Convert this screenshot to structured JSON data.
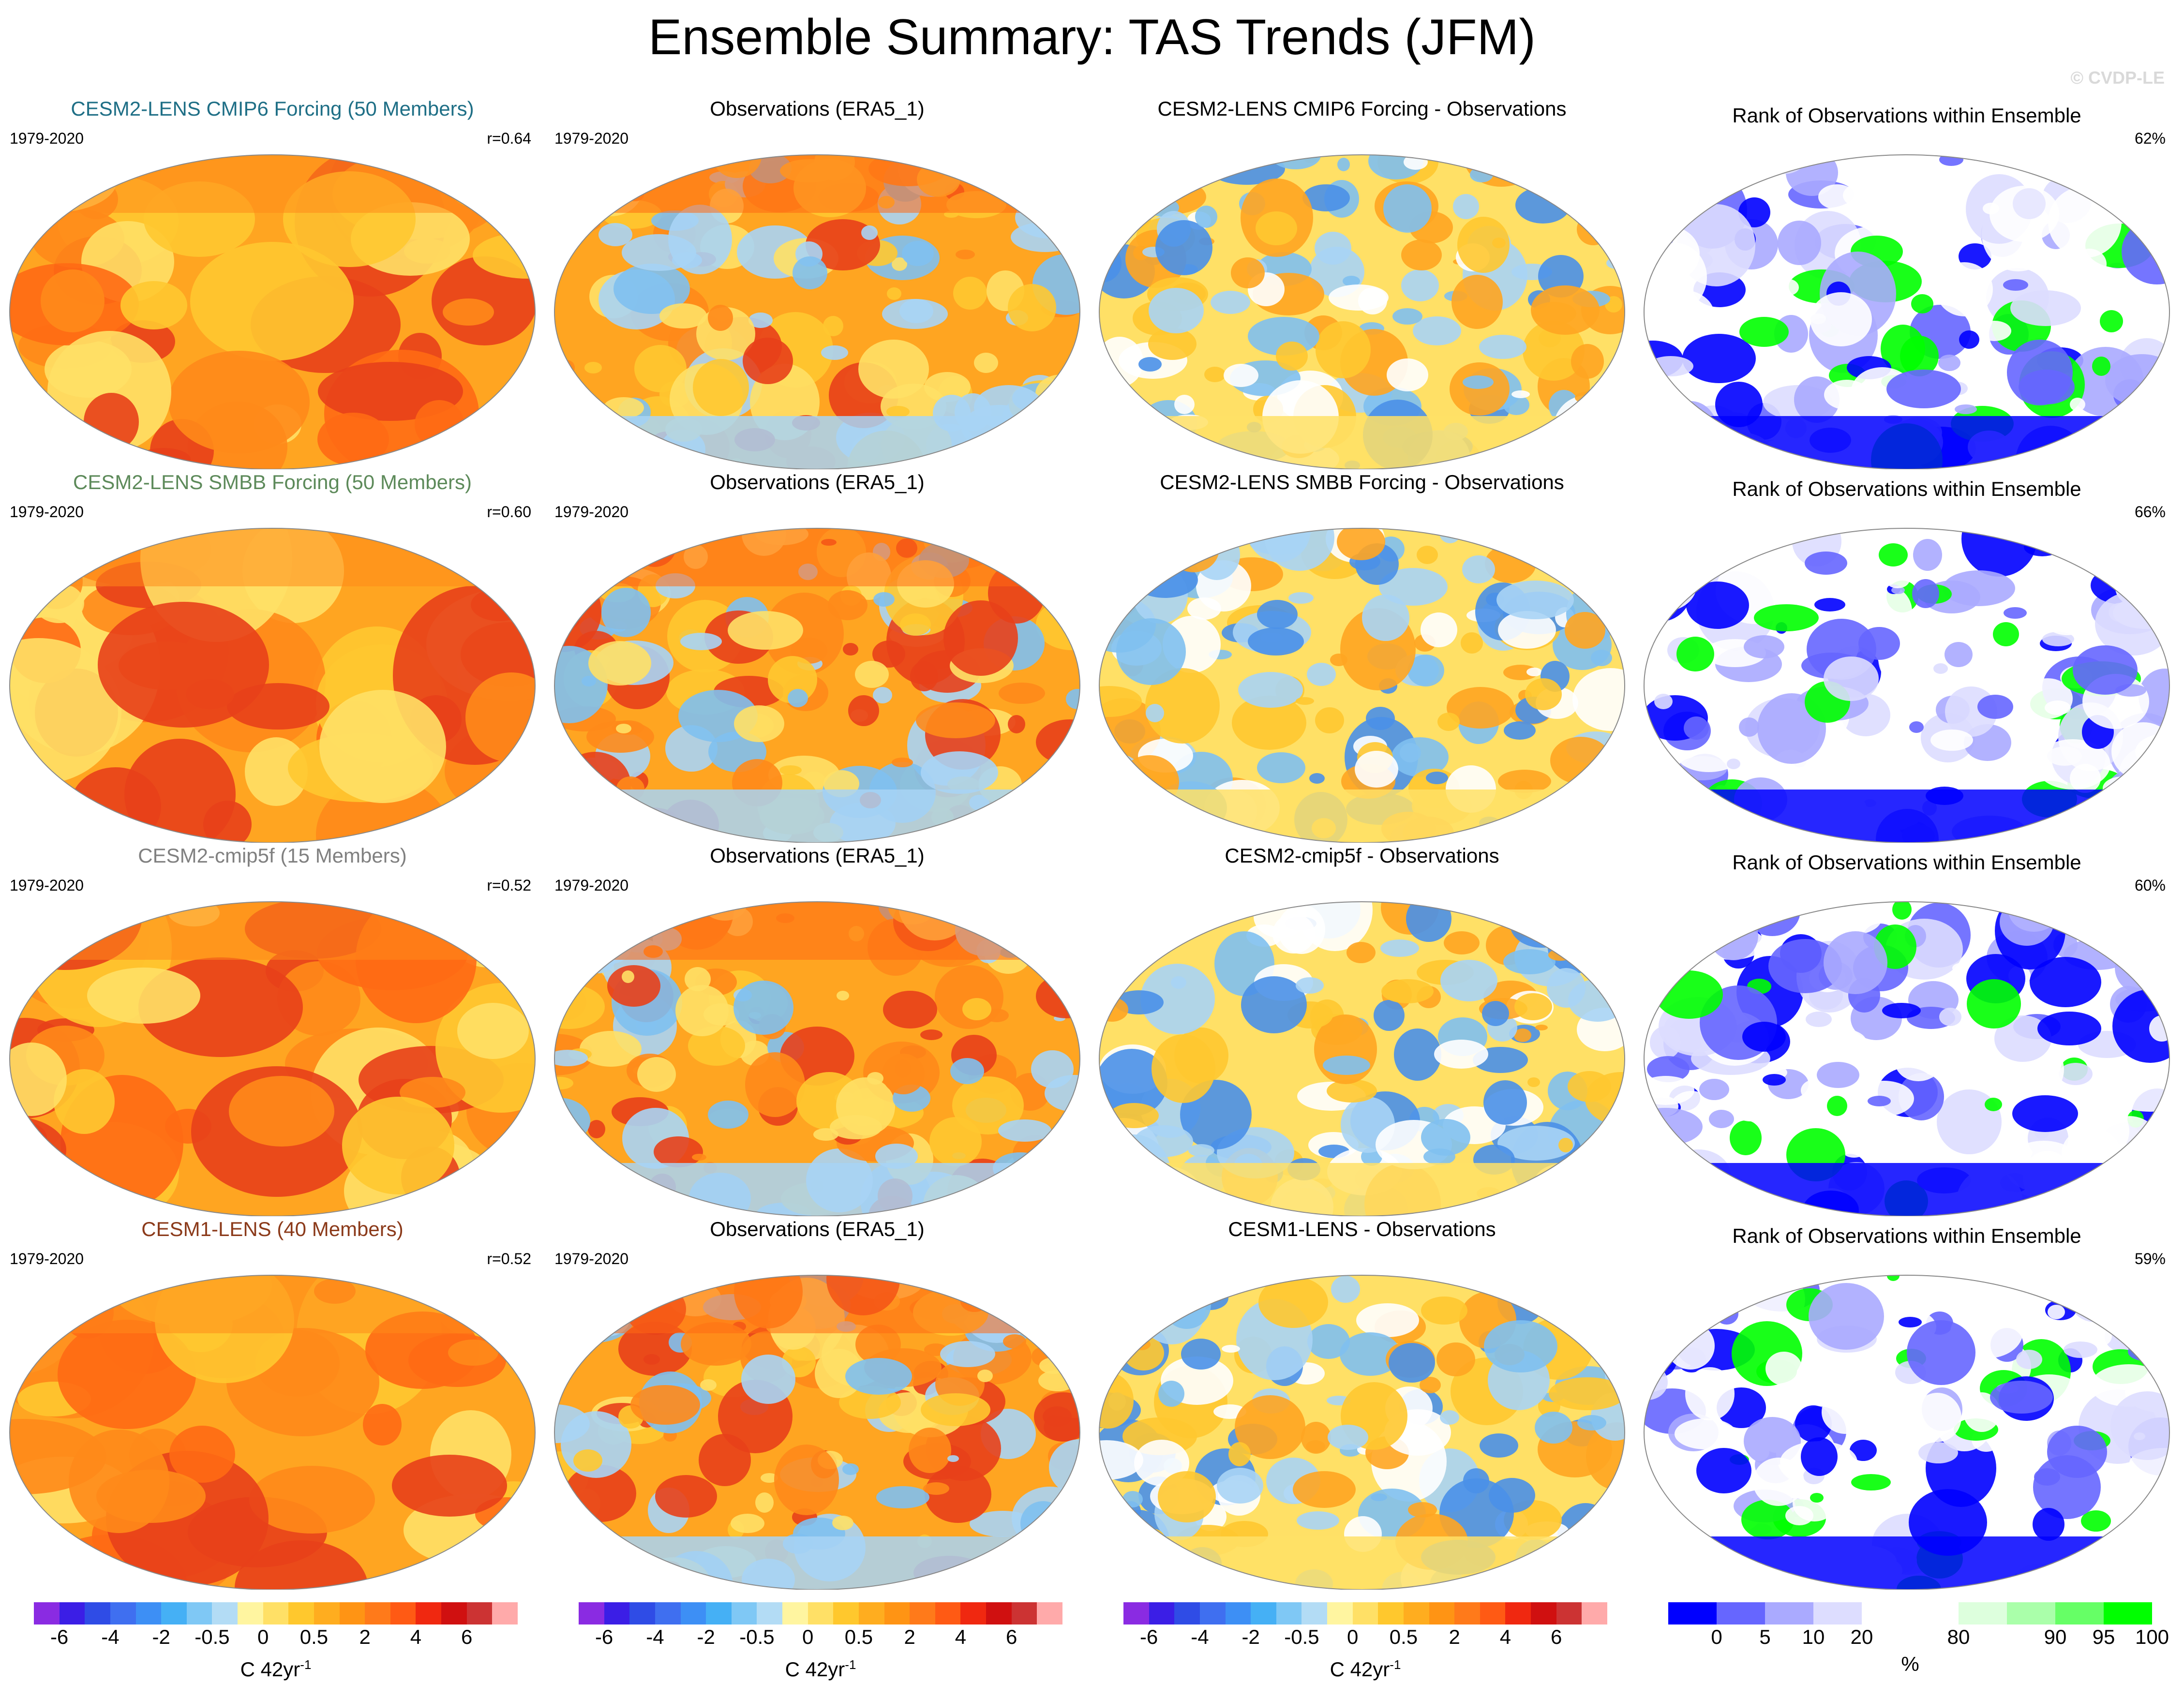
{
  "title": "Ensemble Summary: TAS Trends (JFM)",
  "watermark": "© CVDP-LE",
  "rows": [
    {
      "model": {
        "title": "CESM2-LENS CMIP6 Forcing (50 Members)",
        "color": "#1f6f86",
        "years": "1979-2020",
        "stat": "r=0.64"
      },
      "obs": {
        "title": "Observations (ERA5_1)",
        "years": "1979-2020"
      },
      "diff": {
        "title": "CESM2-LENS CMIP6 Forcing - Observations"
      },
      "rank": {
        "title": "Rank of Observations within Ensemble",
        "stat": "62%"
      }
    },
    {
      "model": {
        "title": "CESM2-LENS SMBB Forcing (50 Members)",
        "color": "#5d8a5a",
        "years": "1979-2020",
        "stat": "r=0.60"
      },
      "obs": {
        "title": "Observations (ERA5_1)",
        "years": "1979-2020"
      },
      "diff": {
        "title": "CESM2-LENS SMBB Forcing - Observations"
      },
      "rank": {
        "title": "Rank of Observations within Ensemble",
        "stat": "66%"
      }
    },
    {
      "model": {
        "title": "CESM2-cmip5f (15 Members)",
        "color": "#808080",
        "years": "1979-2020",
        "stat": "r=0.52"
      },
      "obs": {
        "title": "Observations (ERA5_1)",
        "years": "1979-2020"
      },
      "diff": {
        "title": "CESM2-cmip5f - Observations"
      },
      "rank": {
        "title": "Rank of Observations within Ensemble",
        "stat": "60%"
      }
    },
    {
      "model": {
        "title": "CESM1-LENS (40 Members)",
        "color": "#8b3a1a",
        "years": "1979-2020",
        "stat": "r=0.52"
      },
      "obs": {
        "title": "Observations (ERA5_1)",
        "years": "1979-2020"
      },
      "diff": {
        "title": "CESM1-LENS - Observations"
      },
      "rank": {
        "title": "Rank of Observations within Ensemble",
        "stat": "59%"
      }
    }
  ],
  "colorbars": {
    "trend": {
      "colors": [
        "#8a2be2",
        "#3b1ee6",
        "#2f4ce6",
        "#3f6ff0",
        "#3d8ff5",
        "#45b0f5",
        "#7fc8f5",
        "#b3dcf5",
        "#fff5a0",
        "#ffe066",
        "#ffc82d",
        "#ffad1f",
        "#ff9414",
        "#ff7a1a",
        "#ff5a14",
        "#f02810",
        "#d01010",
        "#cc3333",
        "#ffaaaa"
      ],
      "ticks": [
        "-6",
        "-4",
        "-2",
        "-0.5",
        "0",
        "0.5",
        "2",
        "4",
        "6"
      ],
      "unit": "C 42yr",
      "unit_sup": "-1"
    },
    "rank": {
      "colors": [
        "#0000ff",
        "#6666ff",
        "#aaaaff",
        "#ddddff",
        "#ffffff",
        "#ffffff",
        "#ddffdd",
        "#aaffaa",
        "#66ff66",
        "#00ff00"
      ],
      "ticks": [
        "0",
        "5",
        "10",
        "20",
        "80",
        "90",
        "95",
        "100"
      ],
      "unit": "%"
    }
  },
  "map_palettes": {
    "model": [
      "#ffa521",
      "#ff8a1a",
      "#ffc830",
      "#ffe066",
      "#ff6a14",
      "#e8401a"
    ],
    "obs": [
      "#ffa521",
      "#ffc830",
      "#ff8a1a",
      "#a8d4f5",
      "#e8401a",
      "#ffe066",
      "#7fc0f0"
    ],
    "diff": [
      "#ffe066",
      "#ffc830",
      "#a8d4f5",
      "#7fc0f0",
      "#4a90e8",
      "#ffa521",
      "#ffffff"
    ],
    "rank": [
      "#ffffff",
      "#ffffff",
      "#0000ff",
      "#ddddff",
      "#aaaaff",
      "#00ff00",
      "#ffffff",
      "#6666ff"
    ]
  }
}
